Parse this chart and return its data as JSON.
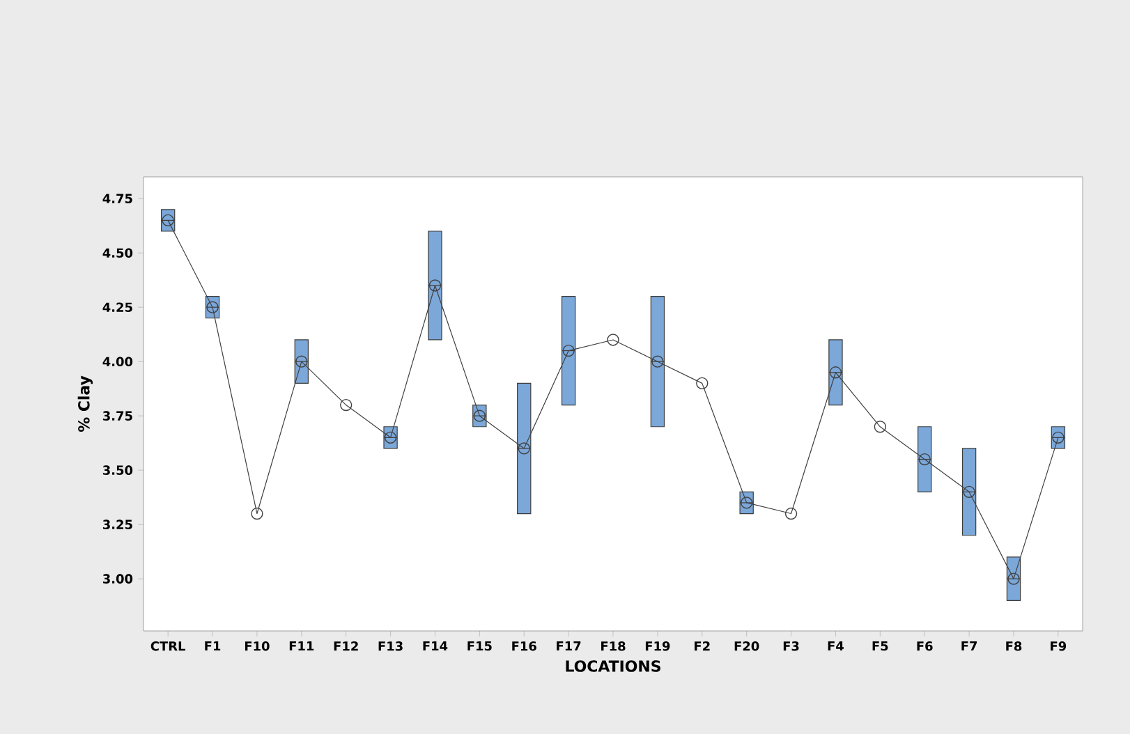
{
  "chart_data": {
    "type": "box",
    "xlabel": "LOCATIONS",
    "ylabel": "% Clay",
    "categories": [
      "CTRL",
      "F1",
      "F10",
      "F11",
      "F12",
      "F13",
      "F14",
      "F15",
      "F16",
      "F17",
      "F18",
      "F19",
      "F2",
      "F20",
      "F3",
      "F4",
      "F5",
      "F6",
      "F7",
      "F8",
      "F9"
    ],
    "color": "#7ba7d9",
    "boxes": [
      {
        "low": 4.6,
        "q1": 4.6,
        "median": 4.65,
        "q3": 4.7,
        "high": 4.7
      },
      {
        "low": 4.2,
        "q1": 4.2,
        "median": 4.25,
        "q3": 4.3,
        "high": 4.3
      },
      null,
      {
        "low": 3.9,
        "q1": 3.9,
        "median": 4.0,
        "q3": 4.1,
        "high": 4.1
      },
      null,
      {
        "low": 3.6,
        "q1": 3.6,
        "median": 3.65,
        "q3": 3.7,
        "high": 3.7
      },
      {
        "low": 4.1,
        "q1": 4.1,
        "median": 4.35,
        "q3": 4.6,
        "high": 4.6
      },
      {
        "low": 3.7,
        "q1": 3.7,
        "median": 3.75,
        "q3": 3.8,
        "high": 3.8
      },
      {
        "low": 3.3,
        "q1": 3.3,
        "median": 3.6,
        "q3": 3.9,
        "high": 3.9
      },
      {
        "low": 3.8,
        "q1": 3.8,
        "median": 4.05,
        "q3": 4.3,
        "high": 4.3
      },
      null,
      {
        "low": 3.7,
        "q1": 3.7,
        "median": 4.0,
        "q3": 4.3,
        "high": 4.3
      },
      null,
      {
        "low": 3.3,
        "q1": 3.3,
        "median": 3.35,
        "q3": 3.4,
        "high": 3.4
      },
      null,
      {
        "low": 3.8,
        "q1": 3.8,
        "median": 3.95,
        "q3": 4.1,
        "high": 4.1
      },
      null,
      {
        "low": 3.4,
        "q1": 3.4,
        "median": 3.55,
        "q3": 3.7,
        "high": 3.7
      },
      {
        "low": 3.2,
        "q1": 3.2,
        "median": 3.4,
        "q3": 3.6,
        "high": 3.6
      },
      {
        "low": 2.9,
        "q1": 2.9,
        "median": 3.0,
        "q3": 3.1,
        "high": 3.1
      },
      {
        "low": 3.6,
        "q1": 3.6,
        "median": 3.65,
        "q3": 3.7,
        "high": 3.7
      }
    ],
    "series": [
      {
        "type": "line",
        "color": "#404040",
        "marker": "circle",
        "values": [
          4.65,
          4.25,
          3.3,
          4.0,
          3.8,
          3.65,
          4.35,
          3.75,
          3.6,
          4.05,
          4.1,
          4.0,
          3.9,
          3.35,
          3.3,
          3.95,
          3.7,
          3.55,
          3.4,
          3.0,
          3.65
        ]
      }
    ],
    "ylim": [
      2.76,
      4.85
    ],
    "yticks": [
      {
        "value": 3,
        "label": "3.00"
      },
      {
        "value": 3.25,
        "label": "3.25"
      },
      {
        "value": 3.5,
        "label": "3.50"
      },
      {
        "value": 3.75,
        "label": "3.75"
      },
      {
        "value": 4,
        "label": "4.00"
      },
      {
        "value": 4.25,
        "label": "4.25"
      },
      {
        "value": 4.5,
        "label": "4.50"
      },
      {
        "value": 4.75,
        "label": "4.75"
      }
    ],
    "grid": false
  }
}
